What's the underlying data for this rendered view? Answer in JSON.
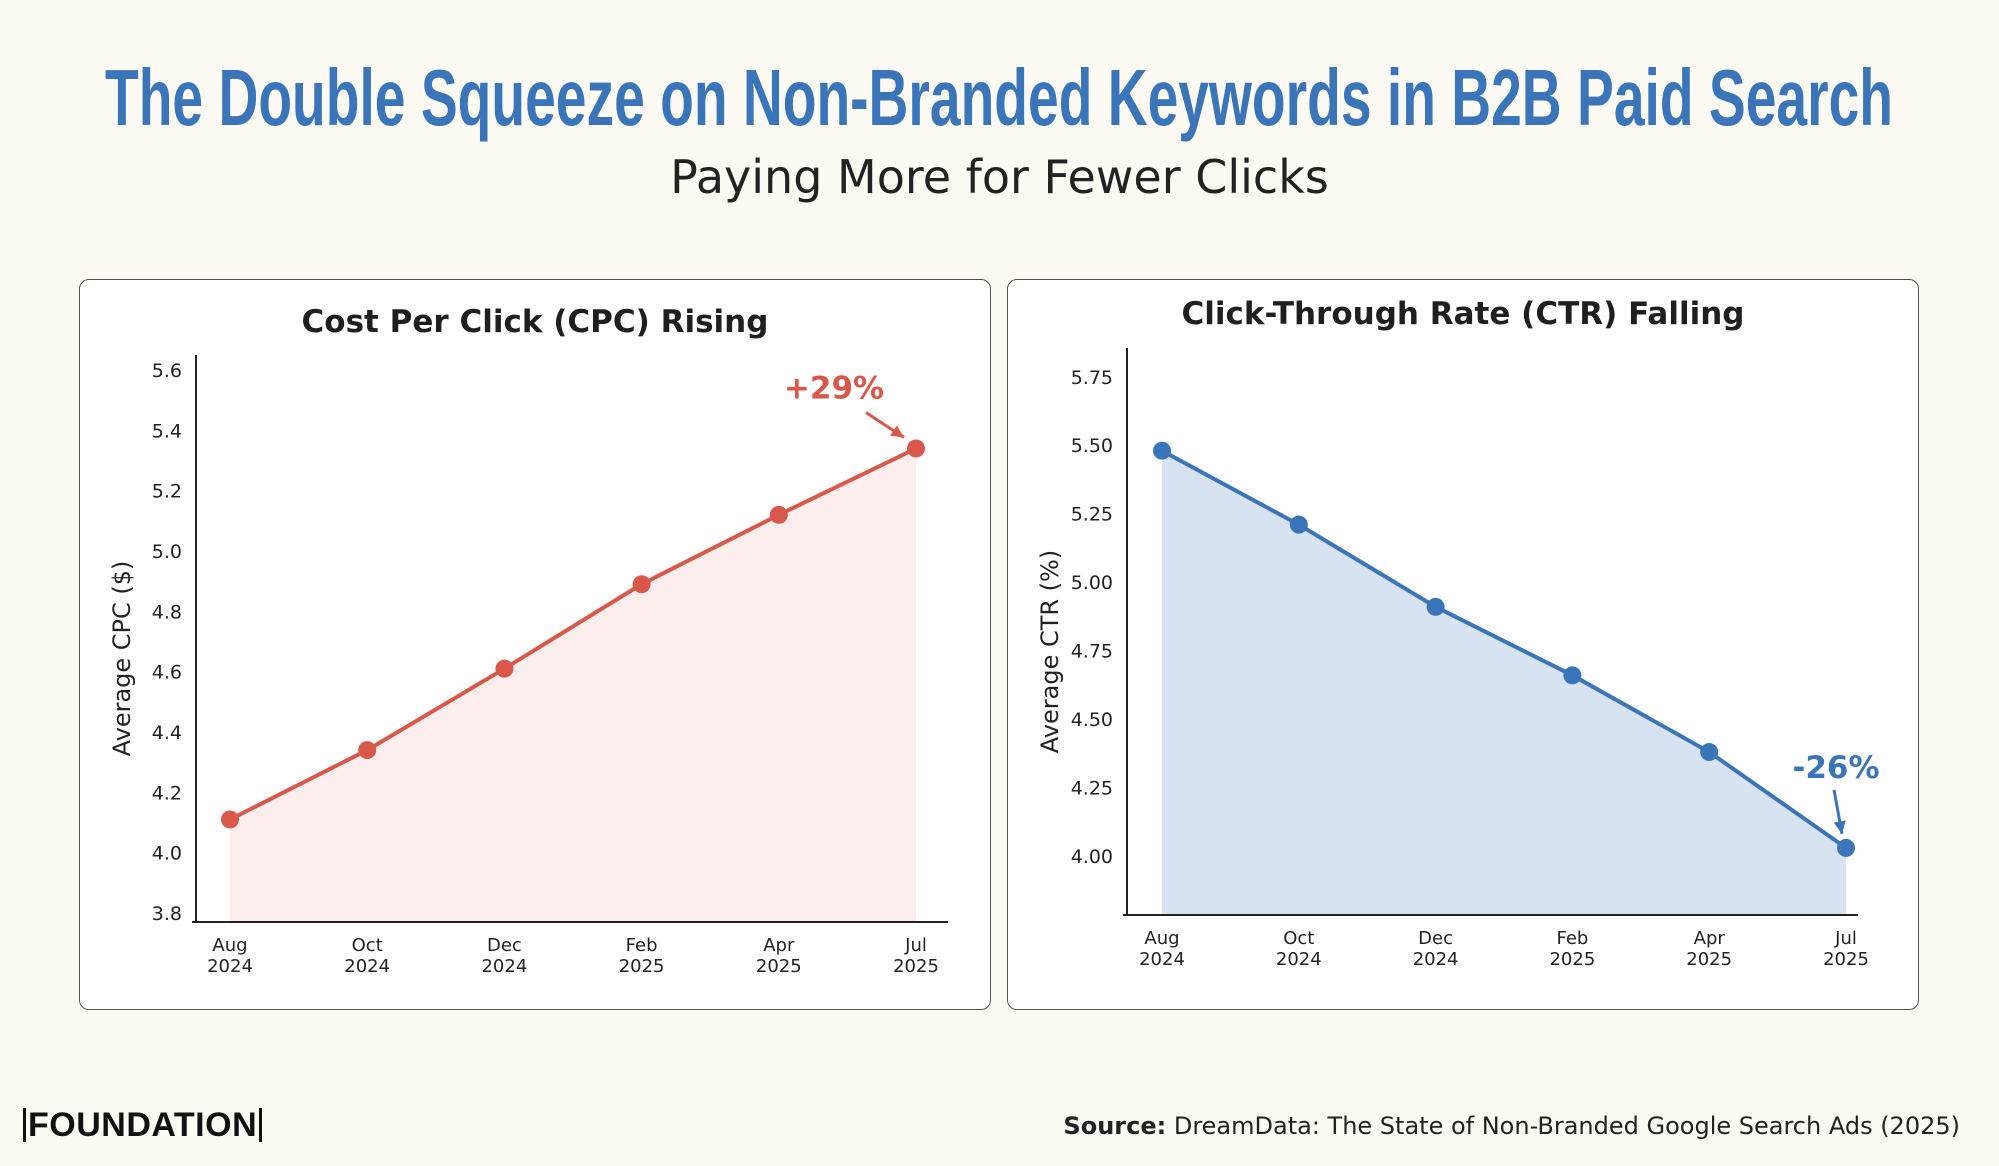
{
  "title": "The Double Squeeze on Non-Branded Keywords in B2B Paid Search",
  "subtitle": "Paying More for Fewer Clicks",
  "colors": {
    "title": "#3a74b9",
    "cpc": "#d9584b",
    "cpc_fill": "#fbeeec",
    "ctr": "#3a74b9",
    "ctr_fill": "#d7e3f1",
    "background": "#fdfaf4"
  },
  "chart_data": [
    {
      "type": "area",
      "title": "Cost Per Click (CPC) Rising",
      "xlabel": "",
      "ylabel": "Average CPC ($)",
      "categories": [
        [
          "Aug",
          "2024"
        ],
        [
          "Oct",
          "2024"
        ],
        [
          "Dec",
          "2024"
        ],
        [
          "Feb",
          "2025"
        ],
        [
          "Apr",
          "2025"
        ],
        [
          "Jul",
          "2025"
        ]
      ],
      "values": [
        4.11,
        4.34,
        4.61,
        4.89,
        5.12,
        5.34
      ],
      "yticks": [
        "3.8",
        "4.0",
        "4.2",
        "4.4",
        "4.6",
        "4.8",
        "5.0",
        "5.2",
        "5.4",
        "5.6"
      ],
      "ylim": [
        3.77,
        5.65
      ],
      "annotation": {
        "text": "+29%",
        "target_index": 5
      },
      "grid": false
    },
    {
      "type": "area",
      "title": "Click-Through Rate (CTR) Falling",
      "xlabel": "",
      "ylabel": "Average CTR (%)",
      "categories": [
        [
          "Aug",
          "2024"
        ],
        [
          "Oct",
          "2024"
        ],
        [
          "Dec",
          "2024"
        ],
        [
          "Feb",
          "2025"
        ],
        [
          "Apr",
          "2025"
        ],
        [
          "Jul",
          "2025"
        ]
      ],
      "values": [
        5.48,
        5.21,
        4.91,
        4.66,
        4.38,
        4.03
      ],
      "yticks": [
        "4.00",
        "4.25",
        "4.50",
        "4.75",
        "5.00",
        "5.25",
        "5.50",
        "5.75"
      ],
      "ylim": [
        3.785,
        5.855
      ],
      "annotation": {
        "text": "-26%",
        "target_index": 5
      },
      "grid": false
    }
  ],
  "footer": {
    "logo": "FOUNDATION",
    "source_label": "Source:",
    "source_text": " DreamData: The State of Non-Branded Google Search Ads (2025)"
  }
}
